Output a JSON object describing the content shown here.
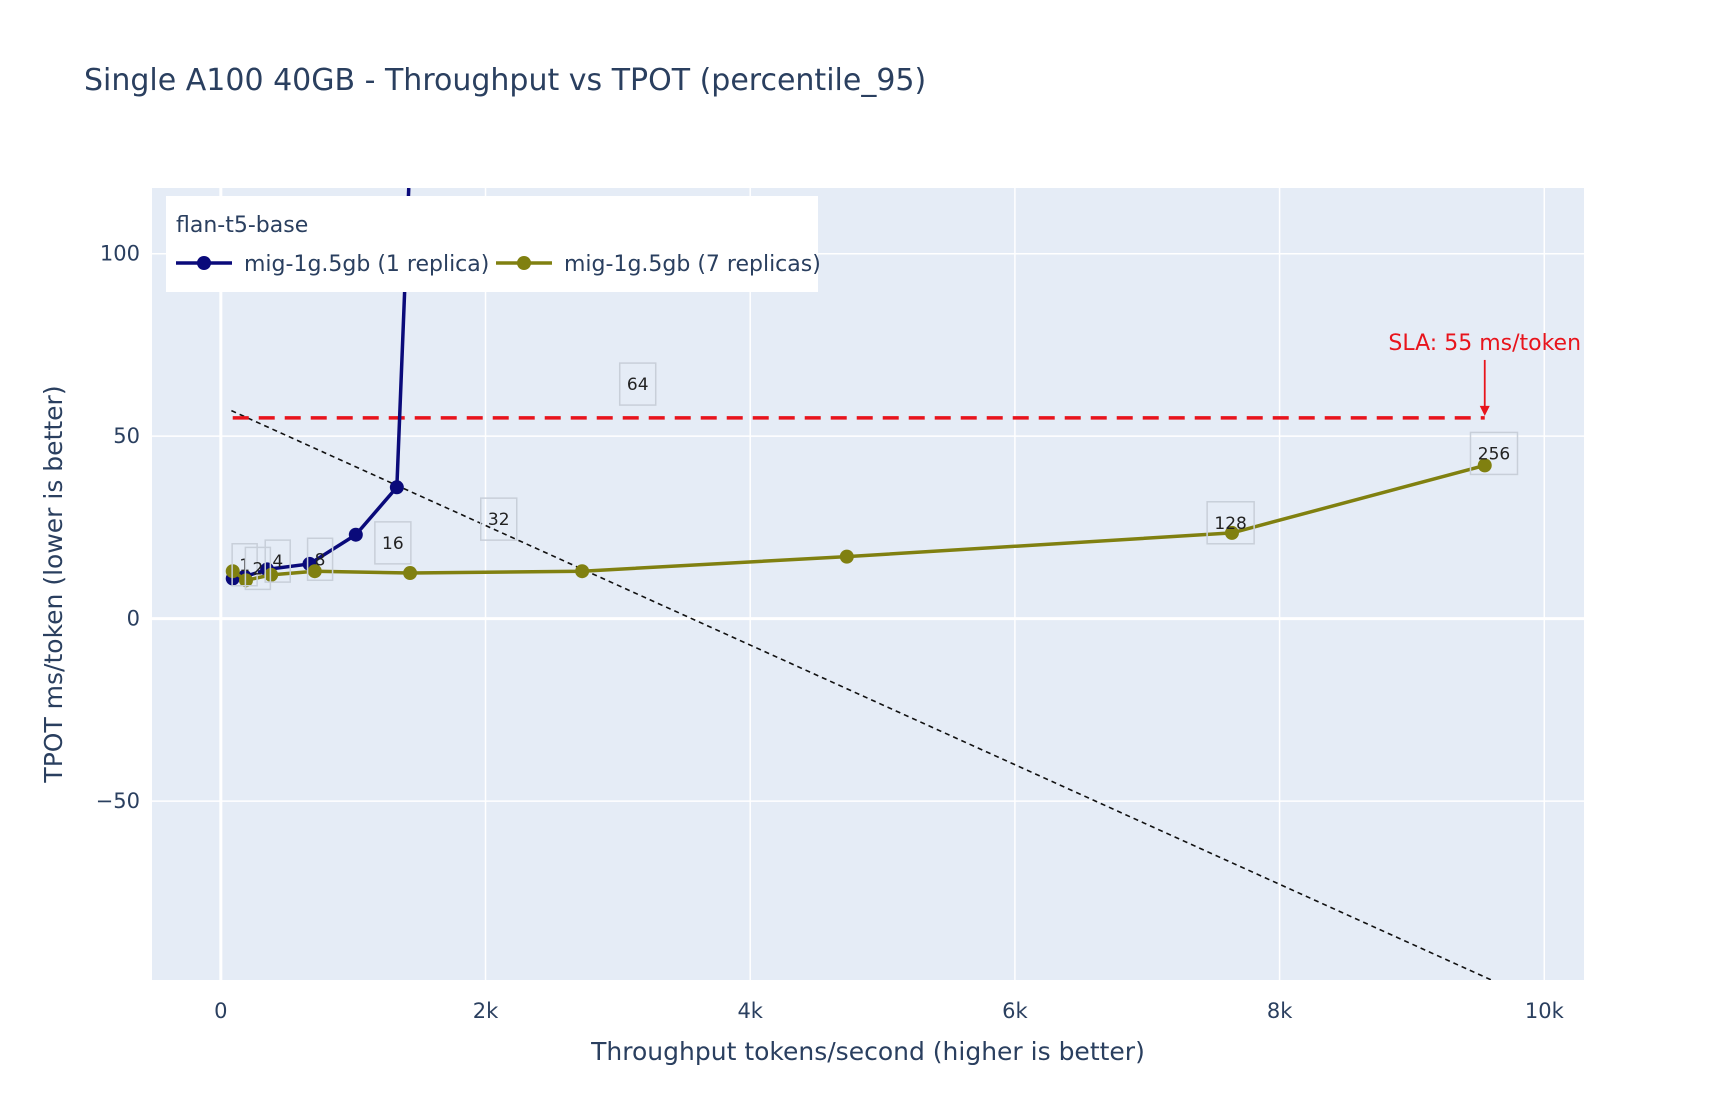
{
  "chart_data": {
    "type": "line",
    "title": "Single A100 40GB - Throughput vs TPOT (percentile_95)",
    "xlabel": "Throughput tokens/second (higher is better)",
    "ylabel": "TPOT ms/token (lower is better)",
    "xlim": [
      -520,
      10300
    ],
    "ylim": [
      -99,
      118
    ],
    "x_ticks": [
      0,
      2000,
      4000,
      6000,
      8000,
      10000
    ],
    "x_tick_labels": [
      "0",
      "2k",
      "4k",
      "6k",
      "8k",
      "10k"
    ],
    "y_ticks": [
      -50,
      0,
      50,
      100
    ],
    "y_tick_labels": [
      "−50",
      "0",
      "50",
      "100"
    ],
    "grid": true,
    "legend": {
      "title": "flan-t5-base",
      "placement": "top-left"
    },
    "series": [
      {
        "name": "mig-1g.5gb (1 replica)",
        "color": "#0a0a7a",
        "x": [
          90,
          180,
          350,
          670,
          1020,
          1330,
          1420
        ],
        "y": [
          11,
          11.5,
          13.5,
          15,
          23,
          36,
          118
        ]
      },
      {
        "name": "mig-1g.5gb (7 replicas)",
        "color": "#808010",
        "x": [
          90,
          190,
          380,
          710,
          1430,
          2730,
          4730,
          7640,
          9550
        ],
        "y": [
          13,
          10.5,
          12,
          13,
          12.5,
          13,
          17,
          23.5,
          42
        ]
      }
    ],
    "point_labels": [
      {
        "text": "1",
        "x": 180,
        "y": 14.5
      },
      {
        "text": "2",
        "x": 280,
        "y": 13.5
      },
      {
        "text": "4",
        "x": 430,
        "y": 15.5
      },
      {
        "text": "8",
        "x": 750,
        "y": 16
      },
      {
        "text": "16",
        "x": 1300,
        "y": 20.5
      },
      {
        "text": "32",
        "x": 2100,
        "y": 27
      },
      {
        "text": "64",
        "x": 3150,
        "y": 64
      },
      {
        "text": "128",
        "x": 7630,
        "y": 26
      },
      {
        "text": "256",
        "x": 9620,
        "y": 45
      }
    ],
    "sla": {
      "value": 55,
      "x_range": [
        90,
        9550
      ],
      "label": "SLA: 55 ms/token",
      "color": "#e8141c"
    },
    "trend_line": {
      "x": [
        80,
        9600
      ],
      "y": [
        57,
        -99
      ],
      "color": "#111111"
    }
  }
}
